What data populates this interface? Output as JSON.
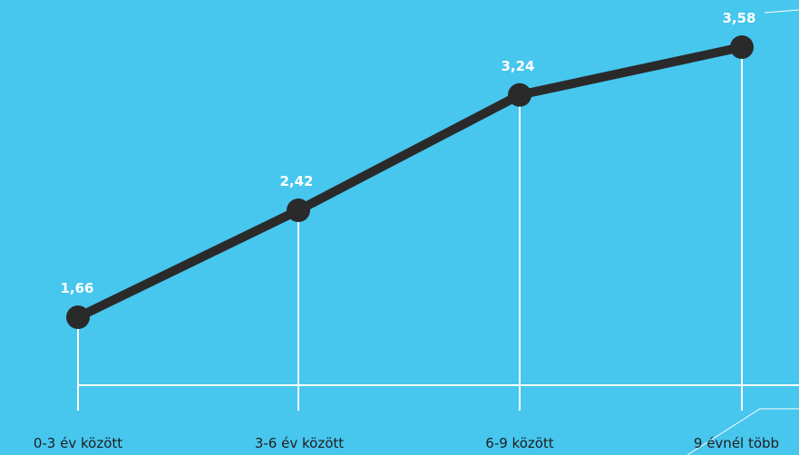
{
  "colors": {
    "background": "#47c6ee",
    "line": "#2a2a2a",
    "guide": "#ffffff",
    "value_label": "#ffffff",
    "category_label": "#1f1f1f"
  },
  "chart_data": {
    "type": "line",
    "categories": [
      "0-3 év között",
      "3-6 év között",
      "6-9 között",
      "9 évnél több"
    ],
    "values": [
      1.66,
      2.42,
      3.24,
      3.58
    ],
    "data_labels": [
      "1,66",
      "2,42",
      "3,24",
      "3,58"
    ],
    "ylim": [
      1.35,
      3.6
    ],
    "grid": false,
    "legend": "none"
  }
}
